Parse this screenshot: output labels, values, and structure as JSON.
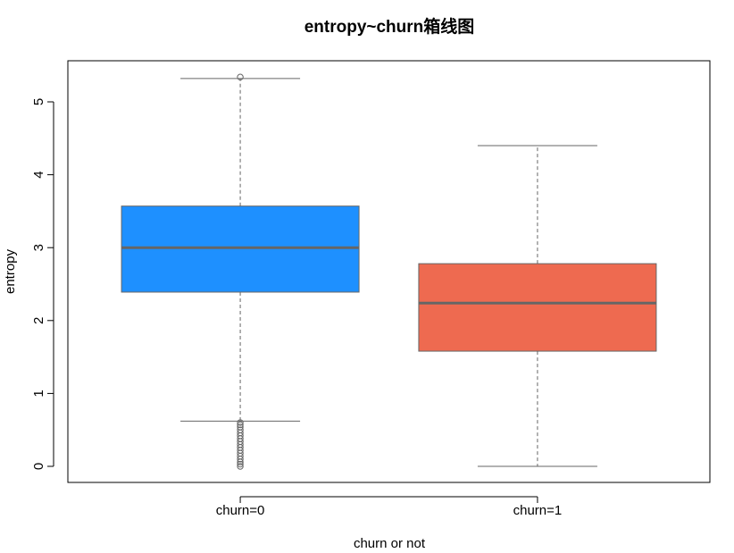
{
  "chart_data": {
    "type": "box",
    "title": "entropy~churn箱线图",
    "xlabel": "churn or not",
    "ylabel": "entropy",
    "ylim": [
      -0.2,
      5.6
    ],
    "yticks": [
      0,
      1,
      2,
      3,
      4,
      5
    ],
    "categories": [
      "churn=0",
      "churn=1"
    ],
    "boxes": [
      {
        "category": "churn=0",
        "color": "#1E90FF",
        "whisker_low": 0.62,
        "q1": 2.39,
        "median": 3.0,
        "q3": 3.57,
        "whisker_high": 5.32,
        "outliers": [
          5.34,
          0.6,
          0.57,
          0.54,
          0.5,
          0.46,
          0.42,
          0.38,
          0.34,
          0.3,
          0.26,
          0.22,
          0.18,
          0.14,
          0.1,
          0.06,
          0.03,
          0.0
        ]
      },
      {
        "category": "churn=1",
        "color": "#EE6A50",
        "whisker_low": 0.0,
        "q1": 1.58,
        "median": 2.24,
        "q3": 2.78,
        "whisker_high": 4.4,
        "outliers": []
      }
    ],
    "grid": false,
    "legend": "none"
  }
}
